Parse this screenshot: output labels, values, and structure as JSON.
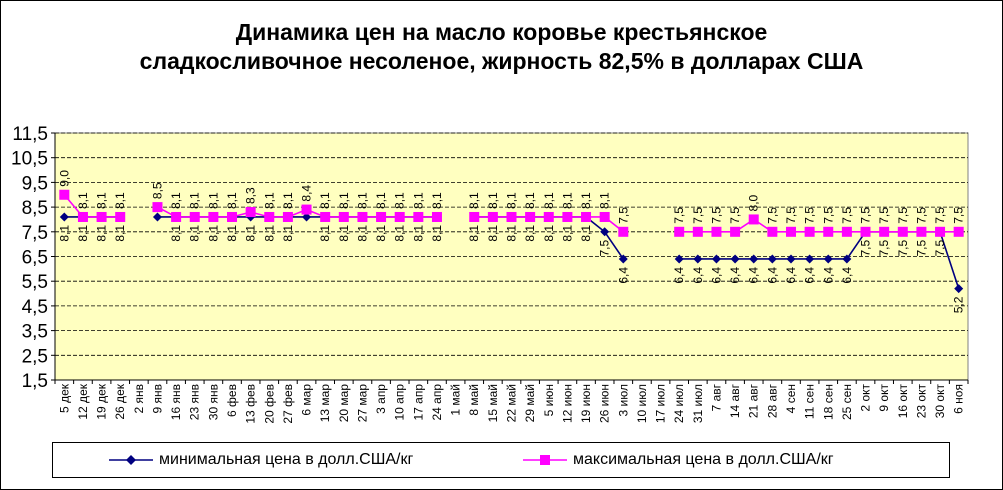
{
  "chart_data": {
    "type": "line",
    "title": [
      "Динамика цен на масло коровье крестьянское",
      "сладкосливочное несоленое, жирность 82,5%  в долларах США"
    ],
    "xlabel": "",
    "ylabel": "",
    "ylim": [
      1.5,
      11.5
    ],
    "yticks": [
      "1,5",
      "2,5",
      "3,5",
      "4,5",
      "5,5",
      "6,5",
      "7,5",
      "8,5",
      "9,5",
      "10,5",
      "11,5"
    ],
    "grid": "horizontal",
    "legend_position": "bottom",
    "categories": [
      "5 дек",
      "12 дек",
      "19 дек",
      "26 дек",
      "2 янв",
      "9 янв",
      "16 янв",
      "23 янв",
      "30 янв",
      "6 фев",
      "13 фев",
      "20 фев",
      "27 фев",
      "6 мар",
      "13 мар",
      "20 мар",
      "27 мар",
      "3 апр",
      "10 апр",
      "17 апр",
      "24 апр",
      "1 май",
      "8 май",
      "15 май",
      "22 май",
      "29 май",
      "5 июн",
      "12 июн",
      "19 июн",
      "26 июн",
      "3 июл",
      "10 июл",
      "17 июл",
      "24 июл",
      "31 июл",
      "7 авг",
      "14 авг",
      "21 авг",
      "28 авг",
      "4 сен",
      "11 сен",
      "18 сен",
      "25 сен",
      "2 окт",
      "9 окт",
      "16 окт",
      "23 окт",
      "30 окт",
      "6 ноя"
    ],
    "series": [
      {
        "name": "минимальная  цена  в долл.США/кг",
        "color": "#000080",
        "marker": "diamond",
        "values": [
          8.1,
          8.1,
          8.1,
          8.1,
          null,
          8.1,
          8.1,
          8.1,
          8.1,
          8.1,
          8.1,
          8.1,
          8.1,
          8.1,
          8.1,
          8.1,
          8.1,
          8.1,
          8.1,
          8.1,
          8.1,
          null,
          8.1,
          8.1,
          8.1,
          8.1,
          8.1,
          8.1,
          8.1,
          7.5,
          6.4,
          null,
          null,
          6.4,
          6.4,
          6.4,
          6.4,
          6.4,
          6.4,
          6.4,
          6.4,
          6.4,
          6.4,
          7.5,
          7.5,
          7.5,
          7.5,
          7.5,
          5.2
        ],
        "labels": [
          "8,1",
          "8,1",
          "8,1",
          "8,1",
          "",
          "",
          "8,1",
          "8,1",
          "8,1",
          "8,1",
          "8,1",
          "8,1",
          "8,1",
          "",
          "8,1",
          "8,1",
          "8,1",
          "8,1",
          "8,1",
          "8,1",
          "8,1",
          "",
          "8,1",
          "8,1",
          "8,1",
          "8,1",
          "8,1",
          "8,1",
          "8,1",
          "7,5",
          "6,4",
          "",
          "",
          "6,4",
          "6,4",
          "6,4",
          "6,4",
          "6,4",
          "6,4",
          "6,4",
          "6,4",
          "6,4",
          "6,4",
          "7,5",
          "7,5",
          "7,5",
          "7,5",
          "7,5",
          "5,2"
        ]
      },
      {
        "name": "максимальная  цена  в долл.США/кг",
        "color": "#ff00ff",
        "marker": "square",
        "values": [
          9.0,
          8.1,
          8.1,
          8.1,
          null,
          8.5,
          8.1,
          8.1,
          8.1,
          8.1,
          8.3,
          8.1,
          8.1,
          8.4,
          8.1,
          8.1,
          8.1,
          8.1,
          8.1,
          8.1,
          8.1,
          null,
          8.1,
          8.1,
          8.1,
          8.1,
          8.1,
          8.1,
          8.1,
          8.1,
          7.5,
          null,
          null,
          7.5,
          7.5,
          7.5,
          7.5,
          8.0,
          7.5,
          7.5,
          7.5,
          7.5,
          7.5,
          7.5,
          7.5,
          7.5,
          7.5,
          7.5,
          7.5
        ],
        "labels": [
          "9,0",
          "8,1",
          "8,1",
          "8,1",
          "",
          "8,5",
          "8,1",
          "8,1",
          "8,1",
          "8,1",
          "8,3",
          "8,1",
          "8,1",
          "8,4",
          "8,1",
          "8,1",
          "8,1",
          "8,1",
          "8,1",
          "8,1",
          "8,1",
          "",
          "8,1",
          "8,1",
          "8,1",
          "8,1",
          "8,1",
          "8,1",
          "8,1",
          "8,1",
          "7,5",
          "",
          "",
          "7,5",
          "7,5",
          "7,5",
          "7,5",
          "8,0",
          "7,5",
          "7,5",
          "7,5",
          "7,5",
          "7,5",
          "7,5",
          "7,5",
          "7,5",
          "7,5",
          "7,5",
          "7,5"
        ]
      }
    ]
  }
}
